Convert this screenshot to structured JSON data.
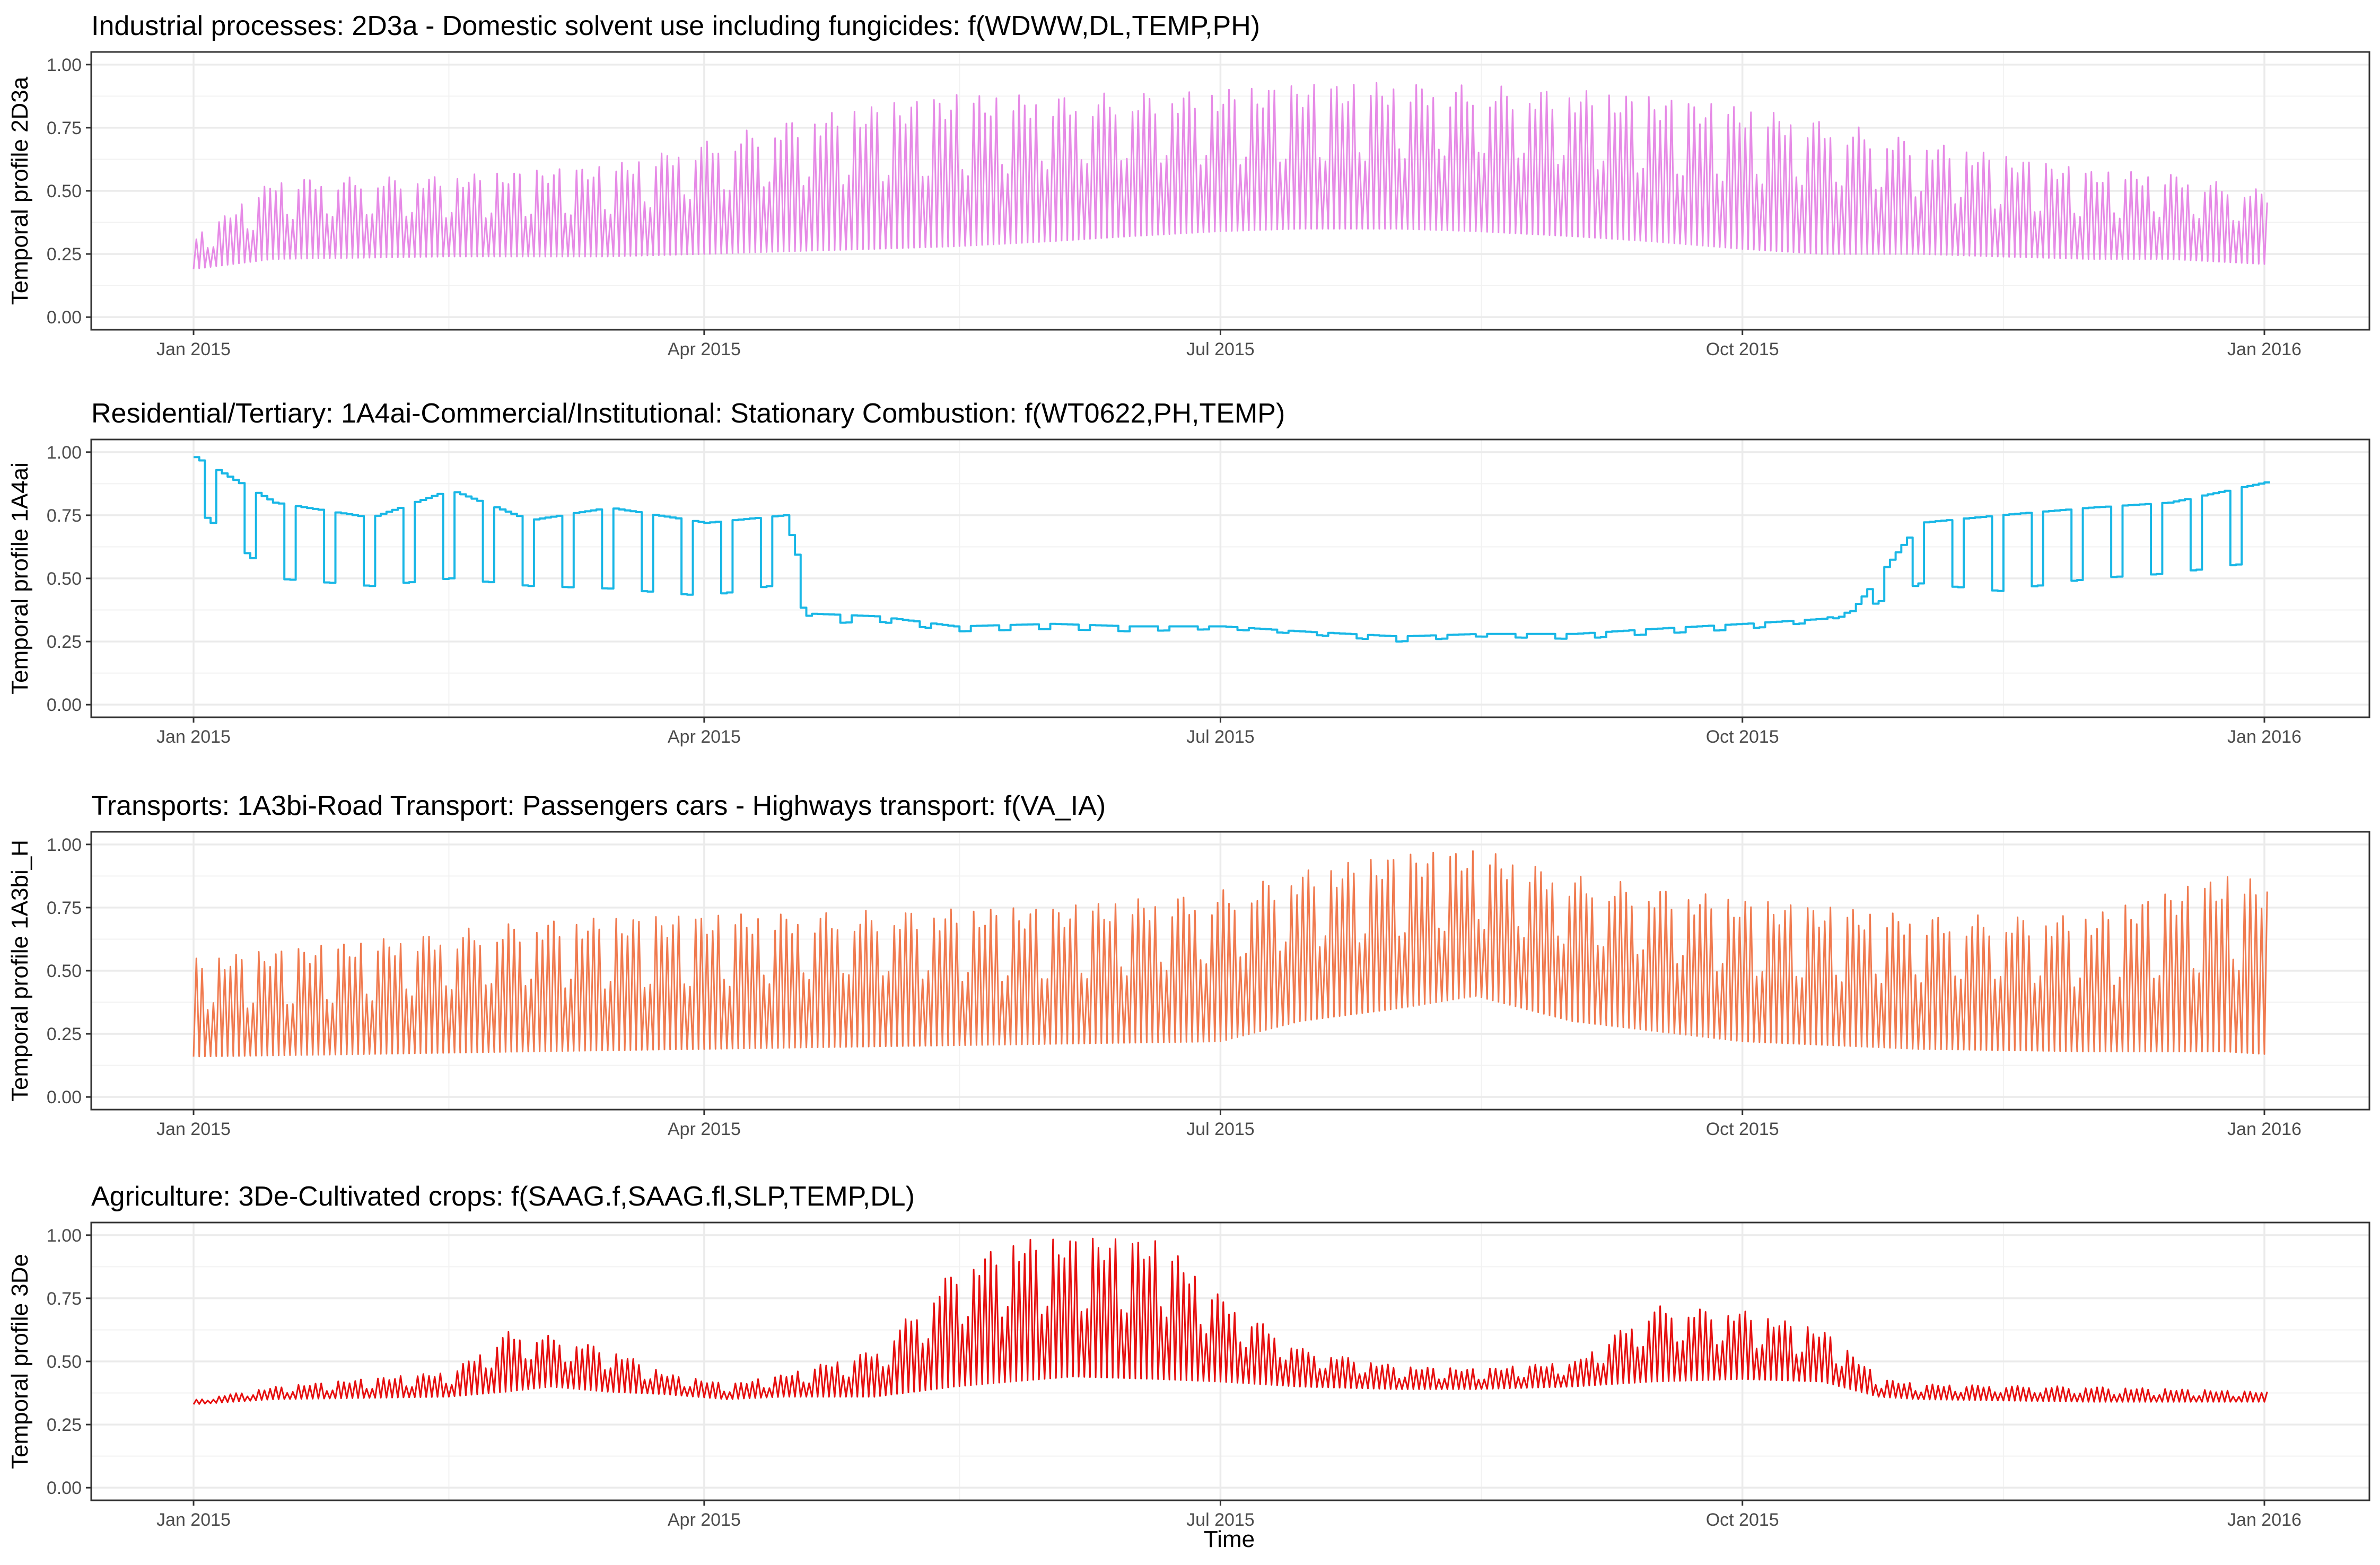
{
  "xlabel": "Time",
  "charts": [
    {
      "id": "p1",
      "title": "Industrial processes: 2D3a - Domestic solvent use including fungicides: f(WDWW,DL,TEMP,PH)",
      "ylabel": "Temporal profile 2D3a",
      "color": "#e68ae6"
    },
    {
      "id": "p2",
      "title": "Residential/Tertiary: 1A4ai-Commercial/Institutional: Stationary Combustion: f(WT0622,PH,TEMP)",
      "ylabel": "Temporal profile 1A4ai",
      "color": "#19b7e6"
    },
    {
      "id": "p3",
      "title": "Transports: 1A3bi-Road Transport: Passengers cars - Highways transport: f(VA_IA)",
      "ylabel": "Temporal profile 1A3bi_H",
      "color": "#f07a4f"
    },
    {
      "id": "p4",
      "title": "Agriculture: 3De-Cultivated crops: f(SAAG.f,SAAG.fl,SLP,TEMP,DL)",
      "ylabel": "Temporal profile 3De",
      "color": "#e60f0f"
    }
  ],
  "chart_data": [
    {
      "type": "line",
      "title": "Industrial processes: 2D3a - Domestic solvent use including fungicides: f(WDWW,DL,TEMP,PH)",
      "xlabel": "Time",
      "ylabel": "Temporal profile 2D3a",
      "x_tick_labels": [
        "Jan 2015",
        "Apr 2015",
        "Jul 2015",
        "Oct 2015",
        "Jan 2016"
      ],
      "y_tick_labels": [
        "0.00",
        "0.25",
        "0.50",
        "0.75",
        "1.00"
      ],
      "xlim": [
        "2015-01-01",
        "2016-01-01"
      ],
      "ylim": [
        0,
        1
      ],
      "grid": true,
      "series": [
        {
          "values": "hourly profile; daily oscillation",
          "date": [
            "2015-01-01",
            "2015-01-15",
            "2015-02-15",
            "2015-03-15",
            "2015-04-01",
            "2015-04-15",
            "2015-05-01",
            "2015-05-15",
            "2015-06-01",
            "2015-06-15",
            "2015-07-01",
            "2015-07-15",
            "2015-08-01",
            "2015-08-15",
            "2015-09-01",
            "2015-09-15",
            "2015-10-01",
            "2015-10-15",
            "2015-11-01",
            "2015-11-15",
            "2015-12-01",
            "2015-12-15",
            "2016-01-01"
          ],
          "daily_min": [
            0.19,
            0.23,
            0.24,
            0.24,
            0.25,
            0.26,
            0.27,
            0.28,
            0.3,
            0.32,
            0.34,
            0.35,
            0.35,
            0.34,
            0.32,
            0.3,
            0.27,
            0.25,
            0.25,
            0.24,
            0.23,
            0.23,
            0.21
          ],
          "daily_max": [
            0.32,
            0.55,
            0.56,
            0.6,
            0.7,
            0.78,
            0.84,
            0.88,
            0.88,
            0.89,
            0.9,
            0.92,
            0.93,
            0.92,
            0.9,
            0.87,
            0.83,
            0.78,
            0.7,
            0.64,
            0.58,
            0.57,
            0.5
          ]
        }
      ]
    },
    {
      "type": "line",
      "title": "Residential/Tertiary: 1A4ai-Commercial/Institutional: Stationary Combustion: f(WT0622,PH,TEMP)",
      "xlabel": "Time",
      "ylabel": "Temporal profile 1A4ai",
      "x_tick_labels": [
        "Jan 2015",
        "Apr 2015",
        "Jul 2015",
        "Oct 2015",
        "Jan 2016"
      ],
      "y_tick_labels": [
        "0.00",
        "0.25",
        "0.50",
        "0.75",
        "1.00"
      ],
      "xlim": [
        "2015-01-01",
        "2016-01-01"
      ],
      "ylim": [
        0,
        1
      ],
      "grid": true,
      "series": [
        {
          "values": "daily step profile; weekday/weekend alternation in heating season",
          "date": [
            "2015-01-01",
            "2015-01-15",
            "2015-02-01",
            "2015-02-15",
            "2015-03-01",
            "2015-03-15",
            "2015-04-01",
            "2015-04-15",
            "2015-04-20",
            "2015-05-01",
            "2015-05-15",
            "2015-06-01",
            "2015-06-15",
            "2015-07-01",
            "2015-07-15",
            "2015-08-01",
            "2015-08-15",
            "2015-09-01",
            "2015-09-15",
            "2015-10-01",
            "2015-10-15",
            "2015-10-20",
            "2015-11-01",
            "2015-11-15",
            "2015-12-01",
            "2015-12-15",
            "2016-01-01"
          ],
          "daily_min": [
            0.78,
            0.5,
            0.47,
            0.5,
            0.47,
            0.46,
            0.43,
            0.48,
            0.32,
            0.33,
            0.29,
            0.3,
            0.29,
            0.3,
            0.28,
            0.25,
            0.27,
            0.26,
            0.28,
            0.3,
            0.33,
            0.36,
            0.48,
            0.45,
            0.5,
            0.52,
            0.57
          ],
          "daily_max": [
            0.98,
            0.8,
            0.74,
            0.85,
            0.73,
            0.78,
            0.72,
            0.75,
            0.36,
            0.35,
            0.31,
            0.32,
            0.31,
            0.31,
            0.29,
            0.27,
            0.28,
            0.28,
            0.3,
            0.32,
            0.34,
            0.37,
            0.72,
            0.75,
            0.78,
            0.8,
            0.88
          ]
        }
      ]
    },
    {
      "type": "line",
      "title": "Transports: 1A3bi-Road Transport: Passengers cars - Highways transport: f(VA_IA)",
      "xlabel": "Time",
      "ylabel": "Temporal profile 1A3bi_H",
      "x_tick_labels": [
        "Jan 2015",
        "Apr 2015",
        "Jul 2015",
        "Oct 2015",
        "Jan 2016"
      ],
      "y_tick_labels": [
        "0.00",
        "0.25",
        "0.50",
        "0.75",
        "1.00"
      ],
      "xlim": [
        "2015-01-01",
        "2016-01-01"
      ],
      "ylim": [
        0,
        1
      ],
      "grid": true,
      "series": [
        {
          "values": "hourly profile; daily oscillation",
          "date": [
            "2015-01-01",
            "2015-02-01",
            "2015-03-01",
            "2015-04-01",
            "2015-05-01",
            "2015-06-01",
            "2015-07-01",
            "2015-07-15",
            "2015-08-01",
            "2015-08-15",
            "2015-09-01",
            "2015-10-01",
            "2015-11-01",
            "2015-12-01",
            "2015-12-25",
            "2016-01-01"
          ],
          "daily_min": [
            0.16,
            0.17,
            0.18,
            0.19,
            0.2,
            0.21,
            0.22,
            0.3,
            0.35,
            0.4,
            0.3,
            0.22,
            0.19,
            0.18,
            0.18,
            0.17
          ],
          "daily_max": [
            0.55,
            0.62,
            0.7,
            0.72,
            0.74,
            0.75,
            0.82,
            0.9,
            0.96,
            0.98,
            0.88,
            0.78,
            0.72,
            0.72,
            0.88,
            0.85
          ]
        }
      ]
    },
    {
      "type": "line",
      "title": "Agriculture: 3De-Cultivated crops: f(SAAG.f,SAAG.fl,SLP,TEMP,DL)",
      "xlabel": "Time",
      "ylabel": "Temporal profile 3De",
      "x_tick_labels": [
        "Jan 2015",
        "Apr 2015",
        "Jul 2015",
        "Oct 2015",
        "Jan 2016"
      ],
      "y_tick_labels": [
        "0.00",
        "0.25",
        "0.50",
        "0.75",
        "1.00"
      ],
      "xlim": [
        "2015-01-01",
        "2016-01-01"
      ],
      "ylim": [
        0,
        1
      ],
      "grid": true,
      "series": [
        {
          "values": "hourly profile; daily oscillation",
          "date": [
            "2015-01-01",
            "2015-01-15",
            "2015-02-15",
            "2015-02-25",
            "2015-03-05",
            "2015-03-15",
            "2015-03-25",
            "2015-04-05",
            "2015-04-15",
            "2015-05-01",
            "2015-05-15",
            "2015-05-25",
            "2015-06-05",
            "2015-06-20",
            "2015-07-01",
            "2015-07-15",
            "2015-08-01",
            "2015-08-15",
            "2015-09-01",
            "2015-09-15",
            "2015-10-01",
            "2015-10-15",
            "2015-10-25",
            "2015-11-01",
            "2015-12-01",
            "2016-01-01"
          ],
          "daily_min": [
            0.33,
            0.35,
            0.36,
            0.38,
            0.4,
            0.38,
            0.37,
            0.35,
            0.36,
            0.36,
            0.4,
            0.42,
            0.44,
            0.43,
            0.42,
            0.4,
            0.39,
            0.39,
            0.4,
            0.42,
            0.43,
            0.42,
            0.36,
            0.35,
            0.34,
            0.34
          ],
          "daily_max": [
            0.35,
            0.4,
            0.46,
            0.62,
            0.6,
            0.55,
            0.45,
            0.41,
            0.45,
            0.55,
            0.88,
            0.98,
            0.99,
            0.98,
            0.75,
            0.55,
            0.48,
            0.47,
            0.5,
            0.72,
            0.7,
            0.62,
            0.43,
            0.41,
            0.4,
            0.38
          ]
        }
      ]
    }
  ]
}
